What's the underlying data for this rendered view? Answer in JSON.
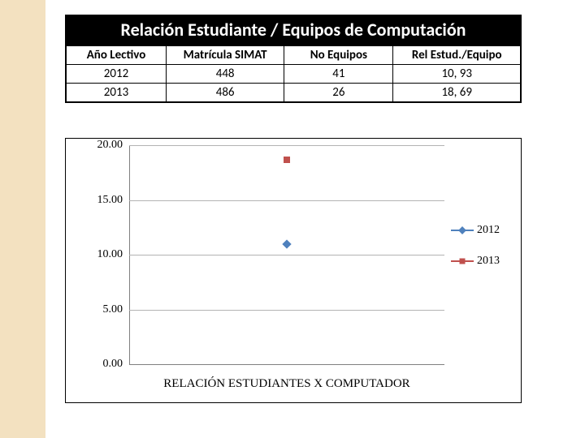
{
  "table": {
    "title": "Relación Estudiante / Equipos de Computación",
    "title_bg": "#000000",
    "title_color": "#ffffff",
    "title_fontsize": 22,
    "border_color": "#000000",
    "header_fontsize": 15,
    "cell_fontsize": 15,
    "columns": [
      "Año Lectivo",
      "Matrícula SIMAT",
      "No Equipos",
      "Rel Estud./Equipo"
    ],
    "col_widths_pct": [
      22,
      26,
      24,
      28
    ],
    "rows": [
      [
        "2012",
        "448",
        "41",
        "10, 93"
      ],
      [
        "2013",
        "486",
        "26",
        "18, 69"
      ]
    ]
  },
  "chart": {
    "type": "scatter",
    "background_color": "#ffffff",
    "border_color": "#000000",
    "grid_color": "#b3b3b3",
    "axis_color": "#808080",
    "ylim": [
      0,
      20
    ],
    "ytick_step": 5,
    "ytick_labels": [
      "0.00",
      "5.00",
      "10.00",
      "15.00",
      "20.00"
    ],
    "ytick_fontsize": 14,
    "x_positions": [
      0.5
    ],
    "series": [
      {
        "name": "2012",
        "marker": "diamond",
        "color": "#4f81bd",
        "line_color": "#4f81bd",
        "values": [
          10.93
        ]
      },
      {
        "name": "2013",
        "marker": "square",
        "color": "#c0504d",
        "line_color": "#c0504d",
        "values": [
          18.69
        ]
      }
    ],
    "x_label": "RELACIÓN ESTUDIANTES X COMPUTADOR",
    "x_label_fontsize": 15,
    "legend_fontsize": 14
  },
  "side_stripe_color": "#f3e1c0"
}
